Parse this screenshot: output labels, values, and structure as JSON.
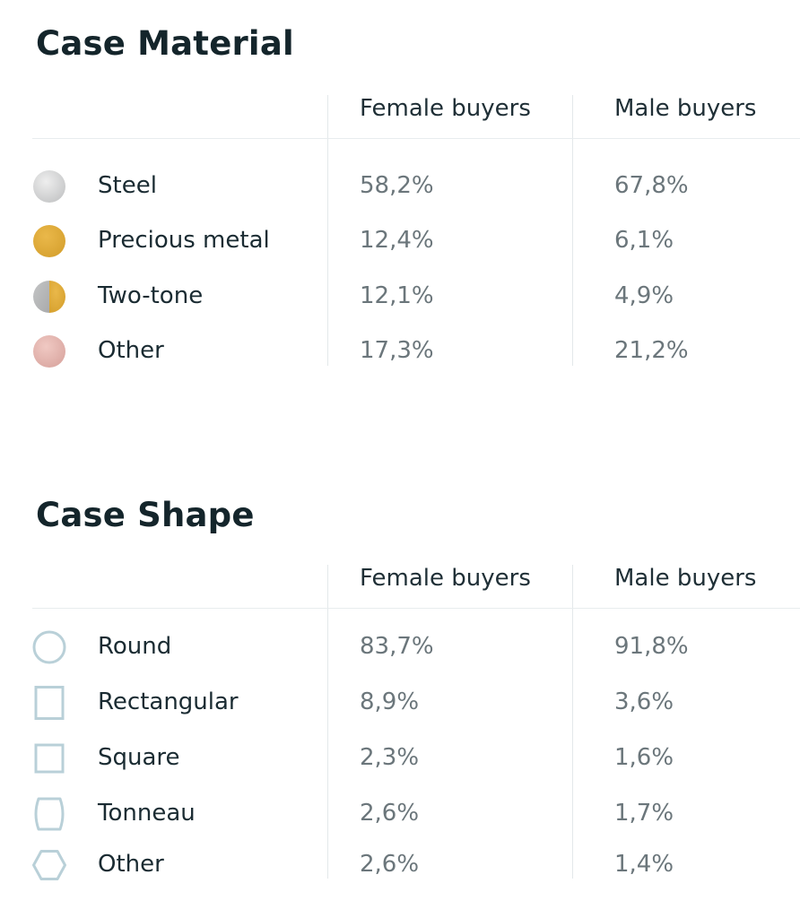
{
  "material": {
    "title": "Case Material",
    "col_female": "Female buyers",
    "col_male": "Male buyers",
    "rows": [
      {
        "icon": "steel-swatch-icon",
        "label": "Steel",
        "female": "58,2%",
        "male": "67,8%"
      },
      {
        "icon": "precious-metal-swatch-icon",
        "label": "Precious metal",
        "female": "12,4%",
        "male": "6,1%"
      },
      {
        "icon": "two-tone-swatch-icon",
        "label": "Two-tone",
        "female": "12,1%",
        "male": "4,9%"
      },
      {
        "icon": "other-material-swatch-icon",
        "label": "Other",
        "female": "17,3%",
        "male": "21,2%"
      }
    ],
    "colors": {
      "steel": "#d4d5d6",
      "gold": "#e0ad3a",
      "two_tone_silver": "#b3b4b5",
      "rose": "#e4b7b1"
    }
  },
  "shape": {
    "title": "Case Shape",
    "col_female": "Female buyers",
    "col_male": "Male buyers",
    "rows": [
      {
        "icon": "round-shape-icon",
        "label": "Round",
        "female": "83,7%",
        "male": "91,8%"
      },
      {
        "icon": "rectangular-shape-icon",
        "label": "Rectangular",
        "female": "8,9%",
        "male": "3,6%"
      },
      {
        "icon": "square-shape-icon",
        "label": "Square",
        "female": "2,3%",
        "male": "1,6%"
      },
      {
        "icon": "tonneau-shape-icon",
        "label": "Tonneau",
        "female": "2,6%",
        "male": "1,7%"
      },
      {
        "icon": "hexagon-shape-icon",
        "label": "Other",
        "female": "2,6%",
        "male": "1,4%"
      }
    ],
    "outline_color": "#b9d0d8"
  }
}
